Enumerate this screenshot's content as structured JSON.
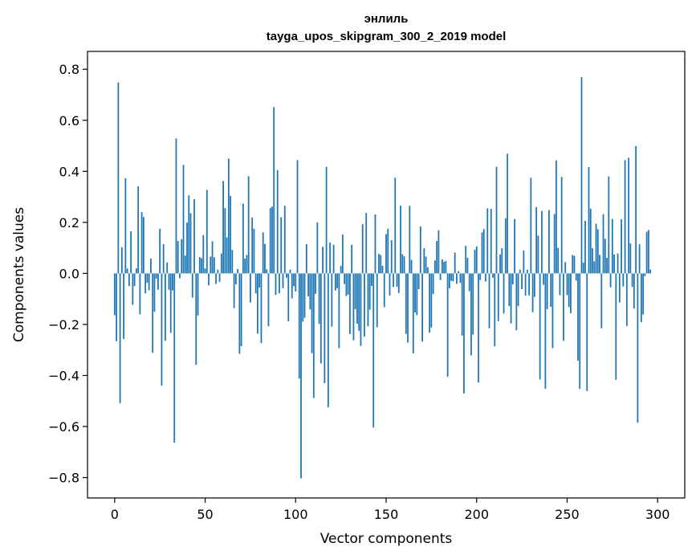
{
  "chart_data": {
    "type": "bar",
    "title": "энлиль",
    "subtitle": "tayga_upos_skipgram_300_2_2019 model",
    "xlabel": "Vector components",
    "ylabel": "Components values",
    "xlim": [
      -15,
      315
    ],
    "ylim": [
      -0.88,
      0.87
    ],
    "xticks": [
      0,
      50,
      100,
      150,
      200,
      250,
      300
    ],
    "yticks": [
      -0.8,
      -0.6,
      -0.4,
      -0.2,
      0.0,
      0.2,
      0.4,
      0.6,
      0.8
    ],
    "ytick_labels": [
      "−0.8",
      "−0.6",
      "−0.4",
      "−0.2",
      "0.0",
      "0.2",
      "0.4",
      "0.6",
      "0.8"
    ],
    "bar_color": "#1f77b4",
    "x": "0..299 (component index)",
    "values": [
      -0.164,
      -0.266,
      0.748,
      -0.508,
      0.103,
      -0.257,
      0.373,
      0.019,
      -0.05,
      0.165,
      -0.123,
      -0.05,
      0.02,
      0.341,
      -0.16,
      0.24,
      0.221,
      -0.078,
      -0.037,
      -0.066,
      0.058,
      -0.311,
      -0.151,
      -0.021,
      -0.064,
      0.175,
      -0.44,
      0.115,
      -0.264,
      0.043,
      -0.064,
      -0.233,
      -0.067,
      -0.663,
      0.529,
      0.127,
      -0.019,
      0.134,
      0.425,
      0.07,
      0.199,
      0.306,
      0.236,
      -0.095,
      0.291,
      -0.358,
      -0.165,
      0.064,
      0.059,
      0.15,
      0.019,
      0.327,
      -0.047,
      0.066,
      0.126,
      0.063,
      -0.041,
      0.015,
      -0.033,
      0.078,
      0.362,
      0.256,
      0.141,
      0.45,
      0.304,
      0.092,
      -0.136,
      -0.043,
      0.017,
      -0.315,
      -0.285,
      0.273,
      0.058,
      0.072,
      0.381,
      -0.114,
      0.219,
      0.175,
      -0.078,
      -0.236,
      -0.055,
      -0.273,
      0.161,
      0.116,
      0.016,
      -0.207,
      0.256,
      0.262,
      0.652,
      -0.084,
      0.405,
      -0.078,
      0.22,
      -0.058,
      0.265,
      -0.017,
      -0.188,
      0.015,
      -0.098,
      -0.05,
      -0.071,
      0.444,
      -0.412,
      -0.803,
      -0.189,
      -0.174,
      0.115,
      -0.09,
      -0.141,
      -0.312,
      -0.488,
      -0.08,
      0.2,
      -0.198,
      -0.353,
      0.104,
      -0.43,
      0.418,
      -0.525,
      0.121,
      -0.209,
      0.112,
      -0.067,
      -0.058,
      -0.293,
      0.03,
      0.152,
      -0.042,
      -0.089,
      -0.083,
      -0.237,
      0.112,
      -0.262,
      -0.14,
      -0.197,
      -0.225,
      -0.284,
      0.193,
      -0.248,
      0.237,
      -0.207,
      -0.142,
      -0.049,
      -0.604,
      0.231,
      -0.211,
      0.076,
      0.072,
      0.03,
      -0.132,
      0.154,
      0.175,
      -0.087,
      0.13,
      -0.053,
      0.375,
      -0.052,
      -0.077,
      0.266,
      0.075,
      0.067,
      -0.237,
      -0.271,
      0.265,
      0.053,
      -0.314,
      -0.153,
      -0.164,
      -0.062,
      0.184,
      -0.267,
      0.099,
      0.066,
      0.024,
      -0.232,
      -0.212,
      -0.081,
      0.051,
      0.127,
      0.169,
      -0.026,
      0.055,
      0.045,
      0.049,
      -0.405,
      -0.058,
      -0.029,
      -0.031,
      0.082,
      -0.041,
      0.008,
      -0.037,
      -0.244,
      -0.47,
      0.108,
      0.061,
      -0.07,
      -0.321,
      -0.24,
      0.093,
      0.106,
      -0.428,
      -0.026,
      0.161,
      0.174,
      -0.032,
      0.255,
      -0.215,
      0.253,
      -0.017,
      -0.286,
      0.418,
      -0.187,
      0.074,
      0.099,
      -0.157,
      0.216,
      0.469,
      -0.128,
      -0.196,
      -0.043,
      0.213,
      -0.223,
      -0.128,
      0.015,
      -0.062,
      0.09,
      -0.087,
      0.015,
      -0.086,
      0.375,
      -0.152,
      -0.092,
      0.26,
      0.148,
      -0.416,
      0.245,
      -0.045,
      -0.452,
      -0.14,
      0.248,
      -0.131,
      -0.293,
      0.233,
      0.443,
      0.1,
      -0.085,
      0.378,
      -0.264,
      0.044,
      -0.085,
      -0.132,
      -0.156,
      0.072,
      0.069,
      -0.028,
      -0.342,
      -0.453,
      0.769,
      0.042,
      0.206,
      -0.461,
      0.417,
      0.254,
      0.099,
      0.047,
      0.195,
      0.173,
      0.073,
      -0.215,
      0.232,
      0.136,
      0.061,
      0.38,
      -0.055,
      0.213,
      0.074,
      -0.417,
      0.078,
      -0.114,
      0.212,
      -0.051,
      0.444,
      -0.206,
      0.453,
      0.118,
      -0.053,
      -0.138,
      0.499,
      -0.585,
      0.114,
      -0.191,
      -0.161,
      -0.011,
      0.163,
      0.17,
      0.015
    ]
  }
}
